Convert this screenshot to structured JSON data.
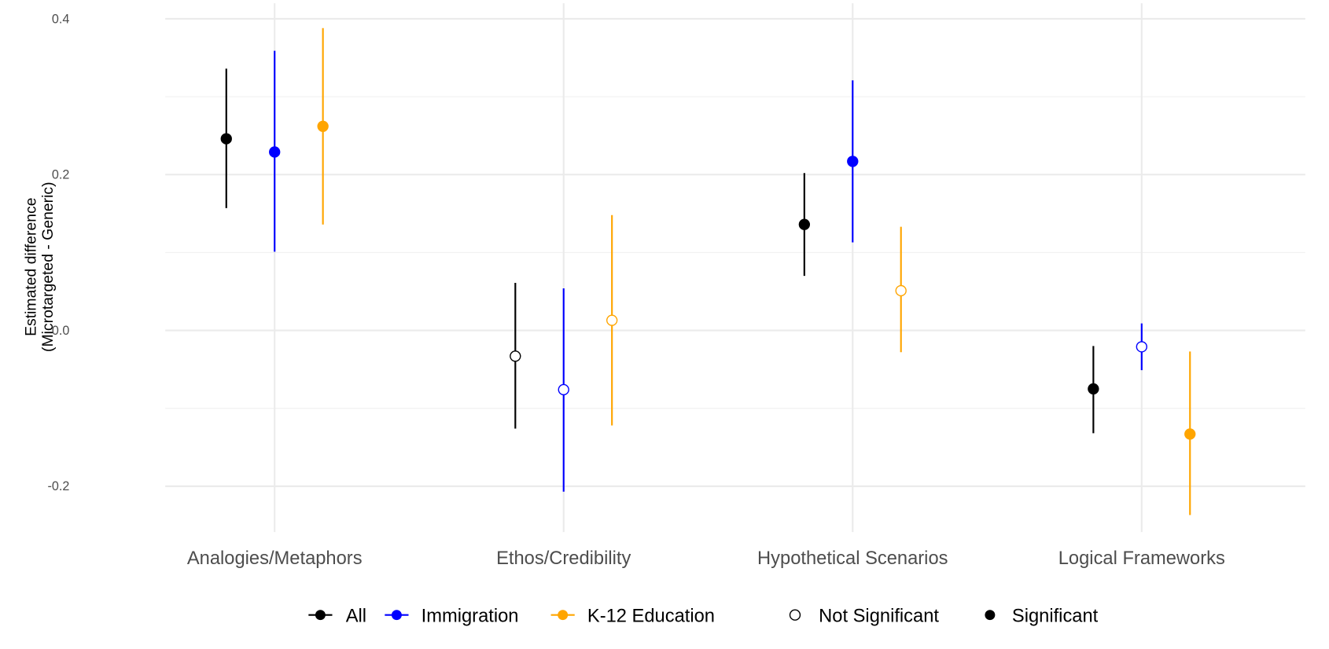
{
  "chart_data": {
    "type": "scatter",
    "subtype": "point-range",
    "title": "",
    "xlabel": "",
    "ylabel": [
      "Estimated difference",
      "(Microtargeted - Generic)"
    ],
    "ylim": [
      -0.25,
      0.42
    ],
    "yticks": [
      0.4,
      0.2,
      0.0,
      -0.2
    ],
    "ytick_labels": [
      "0.4",
      "0.2",
      "0.0",
      "-0.2"
    ],
    "grid": true,
    "categories": [
      "Analogies/Metaphors",
      "Ethos/Credibility",
      "Hypothetical Scenarios",
      "Logical Frameworks"
    ],
    "series": [
      {
        "name": "All",
        "color": "#000000",
        "estimate": [
          0.246,
          -0.033,
          0.136,
          -0.075
        ],
        "lower": [
          0.157,
          -0.126,
          0.07,
          -0.132
        ],
        "upper": [
          0.336,
          0.061,
          0.202,
          -0.02
        ],
        "significant": [
          true,
          false,
          true,
          true
        ]
      },
      {
        "name": "Immigration",
        "color": "#0000FF",
        "estimate": [
          0.229,
          -0.076,
          0.217,
          -0.021
        ],
        "lower": [
          0.101,
          -0.207,
          0.113,
          -0.051
        ],
        "upper": [
          0.359,
          0.054,
          0.321,
          0.009
        ],
        "significant": [
          true,
          false,
          true,
          false
        ]
      },
      {
        "name": "K-12 Education",
        "color": "#FFA500",
        "estimate": [
          0.262,
          0.013,
          0.051,
          -0.133
        ],
        "lower": [
          0.136,
          -0.122,
          -0.028,
          -0.237
        ],
        "upper": [
          0.388,
          0.148,
          0.133,
          -0.027
        ],
        "significant": [
          true,
          false,
          false,
          true
        ]
      }
    ],
    "shape_legend": [
      "Not Significant",
      "Significant"
    ],
    "legend_position": "bottom"
  }
}
